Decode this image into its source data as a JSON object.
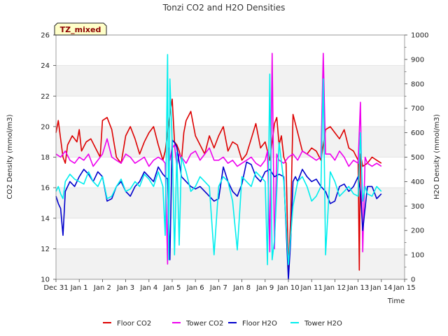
{
  "chart_data": {
    "type": "line",
    "title": "Tonzi CO2 and H2O Densities",
    "badge": "TZ_mixed",
    "xlabel": "Time",
    "ylabel_left": "CO2 Density (mmol/m3)",
    "ylabel_right": "H2O Density (mmol/m3)",
    "ylim_left": [
      10,
      26
    ],
    "ylim_right": [
      0,
      1000
    ],
    "xlim": [
      0,
      15
    ],
    "x_ticks": [
      0,
      1,
      2,
      3,
      4,
      5,
      6,
      7,
      8,
      9,
      10,
      11,
      12,
      13,
      14,
      15
    ],
    "x_tick_labels": [
      "Dec 31",
      "Jan 1",
      "Jan 2",
      "Jan 3",
      "Jan 4",
      "Jan 5",
      "Jan 6",
      "Jan 7",
      "Jan 8",
      "Jan 9",
      "Jan 10",
      "Jan 11",
      "Jan 12",
      "Jan 13",
      "Jan 14",
      "Jan 15"
    ],
    "y_ticks_left": [
      10,
      12,
      14,
      16,
      18,
      20,
      22,
      24,
      26
    ],
    "y_ticks_right": [
      0,
      100,
      200,
      300,
      400,
      500,
      600,
      700,
      800,
      900,
      1000
    ],
    "grid": "horizontal bands",
    "legend_position": "bottom",
    "series": [
      {
        "name": "Floor CO2",
        "axis": "left",
        "color": "#dd0000",
        "x": [
          0.0,
          0.1,
          0.2,
          0.3,
          0.4,
          0.5,
          0.7,
          0.9,
          1.0,
          1.1,
          1.3,
          1.5,
          1.7,
          1.9,
          2.0,
          2.2,
          2.4,
          2.6,
          2.8,
          3.0,
          3.2,
          3.4,
          3.6,
          3.8,
          4.0,
          4.2,
          4.4,
          4.6,
          4.7,
          4.8,
          4.9,
          5.0,
          5.1,
          5.2,
          5.3,
          5.4,
          5.5,
          5.6,
          5.8,
          6.0,
          6.2,
          6.4,
          6.6,
          6.8,
          7.0,
          7.2,
          7.4,
          7.6,
          7.8,
          8.0,
          8.2,
          8.4,
          8.6,
          8.8,
          9.0,
          9.2,
          9.4,
          9.5,
          9.6,
          9.7,
          9.8,
          9.9,
          10.0,
          10.1,
          10.2,
          10.4,
          10.6,
          10.8,
          11.0,
          11.2,
          11.4,
          11.6,
          11.8,
          12.0,
          12.2,
          12.4,
          12.6,
          12.8,
          13.0,
          13.05,
          13.1,
          13.2,
          13.4,
          13.6,
          13.8,
          14.0
        ],
        "y": [
          19.6,
          20.4,
          19.2,
          18.0,
          17.6,
          18.8,
          19.4,
          19.0,
          19.8,
          18.4,
          19.0,
          19.2,
          18.6,
          18.0,
          20.4,
          20.6,
          19.8,
          18.0,
          17.6,
          19.4,
          20.0,
          19.2,
          18.2,
          19.0,
          19.6,
          20.0,
          18.8,
          17.8,
          18.4,
          19.6,
          20.8,
          21.8,
          19.0,
          18.8,
          18.4,
          17.8,
          19.6,
          20.4,
          21.0,
          19.4,
          18.8,
          18.2,
          19.4,
          18.6,
          19.4,
          20.0,
          18.4,
          19.0,
          18.8,
          17.8,
          18.2,
          19.2,
          20.2,
          18.6,
          19.0,
          17.8,
          20.2,
          20.6,
          18.8,
          19.4,
          18.0,
          17.6,
          10.6,
          14.0,
          20.8,
          19.6,
          18.4,
          18.2,
          18.6,
          18.4,
          17.8,
          19.8,
          20.0,
          19.6,
          19.2,
          19.8,
          18.6,
          18.4,
          17.8,
          10.6,
          18.2,
          17.4,
          17.6,
          18.0,
          17.8,
          17.6
        ]
      },
      {
        "name": "Tower CO2",
        "axis": "left",
        "color": "#ee00ee",
        "x": [
          0.0,
          0.2,
          0.4,
          0.6,
          0.8,
          1.0,
          1.2,
          1.4,
          1.6,
          1.8,
          2.0,
          2.2,
          2.4,
          2.6,
          2.8,
          3.0,
          3.2,
          3.4,
          3.6,
          3.8,
          4.0,
          4.2,
          4.4,
          4.6,
          4.7,
          4.8,
          4.85,
          4.9,
          5.0,
          5.1,
          5.2,
          5.3,
          5.4,
          5.6,
          5.8,
          6.0,
          6.2,
          6.4,
          6.6,
          6.8,
          7.0,
          7.2,
          7.4,
          7.6,
          7.8,
          8.0,
          8.2,
          8.4,
          8.6,
          8.8,
          9.0,
          9.1,
          9.2,
          9.3,
          9.4,
          9.5,
          9.6,
          9.8,
          10.0,
          10.2,
          10.4,
          10.6,
          10.8,
          11.0,
          11.2,
          11.4,
          11.5,
          11.6,
          11.8,
          12.0,
          12.2,
          12.4,
          12.6,
          12.8,
          13.0,
          13.1,
          13.2,
          13.3,
          13.4,
          13.6,
          13.8,
          14.0
        ],
        "y": [
          18.2,
          18.0,
          18.4,
          17.8,
          17.6,
          18.0,
          17.8,
          18.2,
          17.4,
          17.8,
          18.2,
          19.2,
          18.0,
          17.8,
          17.6,
          18.2,
          18.0,
          17.6,
          17.8,
          18.0,
          17.4,
          17.8,
          18.0,
          17.8,
          17.6,
          11.0,
          18.6,
          17.8,
          18.6,
          18.8,
          17.4,
          18.2,
          18.0,
          17.6,
          18.2,
          18.4,
          17.8,
          18.2,
          18.6,
          17.8,
          17.8,
          18.0,
          17.6,
          17.8,
          17.4,
          17.6,
          17.8,
          18.0,
          17.6,
          17.4,
          17.8,
          18.4,
          11.8,
          24.8,
          12.0,
          18.2,
          17.8,
          17.6,
          18.0,
          18.2,
          17.8,
          18.4,
          18.2,
          18.0,
          17.8,
          18.0,
          24.8,
          18.2,
          18.2,
          17.8,
          18.4,
          18.0,
          17.4,
          17.8,
          17.6,
          21.6,
          11.8,
          18.0,
          17.6,
          17.4,
          17.6,
          17.4
        ]
      },
      {
        "name": "Floor H2O",
        "axis": "right",
        "color": "#0000cc",
        "x": [
          0.0,
          0.1,
          0.2,
          0.3,
          0.4,
          0.6,
          0.8,
          1.0,
          1.2,
          1.4,
          1.6,
          1.8,
          2.0,
          2.2,
          2.4,
          2.6,
          2.8,
          3.0,
          3.2,
          3.4,
          3.6,
          3.8,
          4.0,
          4.2,
          4.4,
          4.6,
          4.8,
          4.9,
          5.0,
          5.1,
          5.2,
          5.3,
          5.4,
          5.6,
          5.8,
          6.0,
          6.2,
          6.4,
          6.6,
          6.8,
          7.0,
          7.2,
          7.4,
          7.6,
          7.8,
          8.0,
          8.2,
          8.4,
          8.6,
          8.8,
          9.0,
          9.2,
          9.4,
          9.6,
          9.8,
          10.0,
          10.1,
          10.2,
          10.3,
          10.4,
          10.6,
          10.8,
          11.0,
          11.2,
          11.4,
          11.6,
          11.8,
          12.0,
          12.2,
          12.4,
          12.6,
          12.8,
          13.0,
          13.1,
          13.2,
          13.4,
          13.6,
          13.8,
          14.0
        ],
        "y": [
          340,
          310,
          290,
          180,
          360,
          400,
          380,
          420,
          450,
          430,
          400,
          440,
          420,
          320,
          330,
          380,
          400,
          360,
          340,
          380,
          400,
          440,
          420,
          400,
          460,
          430,
          410,
          80,
          570,
          560,
          540,
          480,
          420,
          400,
          380,
          370,
          380,
          360,
          340,
          320,
          330,
          460,
          400,
          360,
          340,
          390,
          480,
          470,
          420,
          400,
          440,
          450,
          420,
          430,
          420,
          0,
          160,
          400,
          420,
          400,
          450,
          420,
          400,
          410,
          380,
          360,
          310,
          320,
          380,
          390,
          360,
          380,
          420,
          360,
          200,
          380,
          380,
          330,
          350
        ]
      },
      {
        "name": "Tower H2O",
        "axis": "right",
        "color": "#00eeee",
        "x": [
          0.0,
          0.1,
          0.2,
          0.3,
          0.4,
          0.6,
          0.8,
          1.0,
          1.2,
          1.4,
          1.6,
          1.8,
          2.0,
          2.2,
          2.4,
          2.6,
          2.8,
          3.0,
          3.2,
          3.4,
          3.6,
          3.8,
          4.0,
          4.2,
          4.4,
          4.6,
          4.7,
          4.8,
          4.85,
          4.9,
          5.0,
          5.1,
          5.2,
          5.3,
          5.4,
          5.6,
          5.8,
          6.0,
          6.2,
          6.4,
          6.6,
          6.8,
          7.0,
          7.2,
          7.4,
          7.6,
          7.8,
          8.0,
          8.2,
          8.4,
          8.6,
          8.8,
          9.0,
          9.1,
          9.2,
          9.3,
          9.4,
          9.6,
          9.8,
          10.0,
          10.2,
          10.4,
          10.6,
          10.8,
          11.0,
          11.2,
          11.4,
          11.5,
          11.6,
          11.8,
          12.0,
          12.2,
          12.4,
          12.6,
          12.8,
          13.0,
          13.1,
          13.2,
          13.3,
          13.4,
          13.6,
          13.8,
          14.0
        ],
        "y": [
          360,
          380,
          350,
          330,
          400,
          430,
          410,
          400,
          390,
          440,
          400,
          380,
          420,
          330,
          340,
          380,
          410,
          360,
          370,
          400,
          380,
          430,
          410,
          380,
          440,
          380,
          180,
          920,
          80,
          820,
          560,
          100,
          520,
          140,
          500,
          440,
          360,
          380,
          420,
          400,
          380,
          100,
          380,
          420,
          400,
          320,
          120,
          420,
          400,
          380,
          440,
          420,
          400,
          60,
          840,
          80,
          160,
          560,
          400,
          60,
          300,
          400,
          420,
          380,
          320,
          340,
          380,
          820,
          100,
          440,
          400,
          340,
          360,
          380,
          350,
          340,
          600,
          320,
          380,
          350,
          340,
          380,
          360
        ]
      }
    ]
  }
}
